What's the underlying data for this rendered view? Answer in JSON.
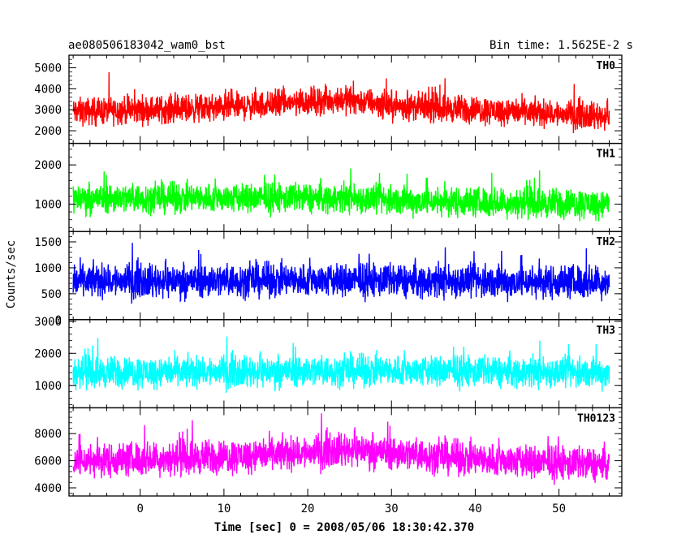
{
  "chart_data": {
    "type": "line",
    "title": "ae080506183042_wam0_bst",
    "subtitle": "Bin time: 1.5625E-2 s",
    "xlabel": "Time [sec] 0 = 2008/05/06 18:30:42.370",
    "ylabel": "Counts/sec",
    "xlim": [
      -8.5,
      57.5
    ],
    "x_ticks": [
      0,
      10,
      20,
      30,
      40,
      50
    ],
    "x_start": -8,
    "x_end": 56,
    "grid": false,
    "panels": [
      {
        "name": "TH0",
        "color": "#ff0000",
        "ylim": [
          1400,
          5600
        ],
        "y_ticks": [
          2000,
          3000,
          4000,
          5000
        ],
        "trend": [
          [
            -8,
            2900
          ],
          [
            0,
            3000
          ],
          [
            10,
            3100
          ],
          [
            20,
            3400
          ],
          [
            25,
            3500
          ],
          [
            30,
            3200
          ],
          [
            40,
            3000
          ],
          [
            50,
            2800
          ],
          [
            56,
            2700
          ]
        ],
        "spread": 1200
      },
      {
        "name": "TH1",
        "color": "#00ff00",
        "ylim": [
          300,
          2550
        ],
        "y_ticks": [
          1000,
          2000
        ],
        "trend": [
          [
            -8,
            1150
          ],
          [
            10,
            1150
          ],
          [
            25,
            1150
          ],
          [
            30,
            1100
          ],
          [
            40,
            1050
          ],
          [
            56,
            1000
          ]
        ],
        "spread": 700
      },
      {
        "name": "TH2",
        "color": "#0000ff",
        "ylim": [
          0,
          1700
        ],
        "y_ticks": [
          0,
          500,
          1000,
          1500
        ],
        "trend": [
          [
            -8,
            750
          ],
          [
            20,
            760
          ],
          [
            40,
            740
          ],
          [
            56,
            730
          ]
        ],
        "spread": 600
      },
      {
        "name": "TH3",
        "color": "#00ffff",
        "ylim": [
          300,
          3050
        ],
        "y_ticks": [
          1000,
          2000,
          3000
        ],
        "trend": [
          [
            -8,
            1400
          ],
          [
            20,
            1450
          ],
          [
            30,
            1450
          ],
          [
            56,
            1400
          ]
        ],
        "spread": 900
      },
      {
        "name": "TH0123",
        "color": "#ff00ff",
        "ylim": [
          3400,
          9900
        ],
        "y_ticks": [
          4000,
          6000,
          8000
        ],
        "trend": [
          [
            -8,
            6000
          ],
          [
            10,
            6300
          ],
          [
            20,
            6600
          ],
          [
            25,
            6900
          ],
          [
            30,
            6600
          ],
          [
            40,
            6100
          ],
          [
            50,
            5800
          ],
          [
            56,
            5700
          ]
        ],
        "spread": 2300
      }
    ]
  }
}
